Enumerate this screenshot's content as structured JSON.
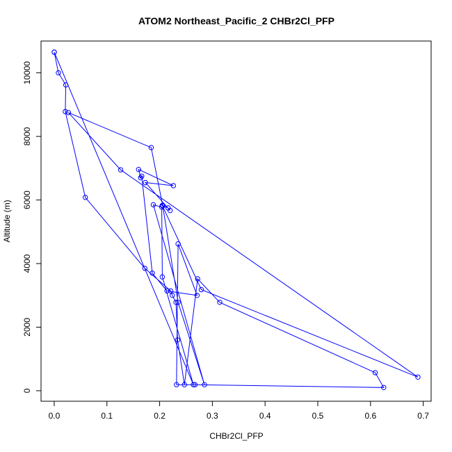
{
  "chart_data": {
    "type": "line",
    "title": "ATOM2 Northeast_Pacific_2 CHBr2Cl_PFP",
    "xlabel": "CHBr2Cl_PFP",
    "ylabel": "Altitude (m)",
    "xlim": [
      -0.025,
      0.715
    ],
    "ylim": [
      -330,
      11000
    ],
    "xticks": [
      0.0,
      0.1,
      0.2,
      0.3,
      0.4,
      0.5,
      0.6,
      0.7
    ],
    "xtick_labels": [
      "0.0",
      "0.1",
      "0.2",
      "0.3",
      "0.4",
      "0.5",
      "0.6",
      "0.7"
    ],
    "yticks": [
      0,
      2000,
      4000,
      6000,
      8000,
      10000
    ],
    "ytick_labels": [
      "0",
      "2000",
      "4000",
      "6000",
      "8000",
      "10000"
    ],
    "grid": false,
    "marker": "open-circle",
    "color": "#0000ff",
    "series": [
      {
        "x": [
          0.0,
          0.008,
          0.022,
          0.021,
          0.059,
          0.172,
          0.221,
          0.224,
          0.231,
          0.234,
          0.247,
          0.272,
          0.314,
          0.609,
          0.625,
          0.267,
          0.232,
          0.235,
          0.271,
          0.214,
          0.186,
          0.166,
          0.164,
          0.16,
          0.226,
          0.173,
          0.22,
          0.216,
          0.205,
          0.279,
          0.69,
          0.126,
          0.027,
          0.184,
          0.206,
          0.235,
          0.285,
          0.188,
          0.204,
          0.205,
          0.264,
          0.0
        ],
        "y": [
          10650,
          10000,
          9620,
          8780,
          6080,
          3850,
          3140,
          3000,
          2780,
          1600,
          190,
          3520,
          2780,
          570,
          100,
          190,
          190,
          4620,
          3000,
          3140,
          3700,
          6750,
          6700,
          6960,
          6450,
          6550,
          5670,
          5750,
          5830,
          3180,
          430,
          6950,
          8750,
          7650,
          5810,
          2780,
          190,
          5850,
          5780,
          3580,
          190,
          10650
        ]
      }
    ]
  }
}
